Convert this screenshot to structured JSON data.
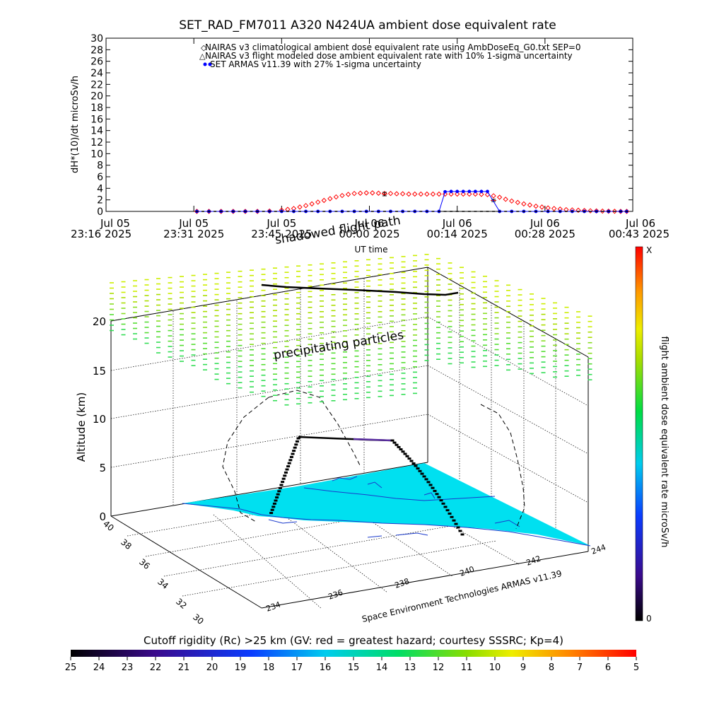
{
  "title": "SET_RAD_FM7011  A320 N424UA ambient dose equivalent rate",
  "chart_data": [
    {
      "type": "line",
      "ylabel": "dH*(10)/dt microSv/h",
      "xlabel": "UT time",
      "ylim": [
        0,
        30
      ],
      "yticks": [
        0,
        2,
        4,
        6,
        8,
        10,
        12,
        14,
        16,
        18,
        20,
        22,
        24,
        26,
        28,
        30
      ],
      "xticks": [
        {
          "top": "Jul 05",
          "bottom": "23:16 2025"
        },
        {
          "top": "Jul 05",
          "bottom": "23:31 2025"
        },
        {
          "top": "Jul 05",
          "bottom": "23:45 2025"
        },
        {
          "top": "Jul 06",
          "bottom": "00:00 2025"
        },
        {
          "top": "Jul 06",
          "bottom": "00:14 2025"
        },
        {
          "top": "Jul 06",
          "bottom": "00:28 2025"
        },
        {
          "top": "Jul 06",
          "bottom": "00:43 2025"
        }
      ],
      "legend_position": "top-right",
      "legend": [
        "NAIRAS v3 climatological ambient dose equivalent rate using AmbDoseEq_G0.txt SEP=0",
        "NAIRAS v3 flight modeled dose ambient equivalent rate with 10% 1-sigma uncertainty",
        "SET ARMAS v11.39 with 27% 1-sigma uncertainty"
      ],
      "legend_colors": [
        "#ff0000",
        "#000000",
        "#0000ff"
      ],
      "x_minutes": [
        0,
        14.5,
        29,
        43.5,
        58,
        72.5,
        87
      ],
      "series": [
        {
          "marker": "diamond",
          "color": "#ff0000",
          "x": [
            15,
            17,
            19,
            21,
            23,
            25,
            27,
            29,
            30,
            31,
            32,
            33,
            34,
            35,
            36,
            37,
            38,
            39,
            40,
            41,
            42,
            43,
            44,
            45,
            46,
            47,
            48,
            49,
            50,
            51,
            52,
            53,
            54,
            55,
            56,
            57,
            58,
            59,
            60,
            61,
            62,
            63,
            64,
            65,
            66,
            67,
            68,
            69,
            70,
            71,
            72,
            73,
            74,
            75,
            76,
            77,
            78,
            79,
            80,
            81,
            82,
            83,
            84,
            85,
            86
          ],
          "y": [
            0,
            0,
            0,
            0,
            0,
            0,
            0.05,
            0.2,
            0.35,
            0.5,
            0.75,
            1.0,
            1.3,
            1.6,
            1.9,
            2.2,
            2.5,
            2.75,
            2.95,
            3.1,
            3.15,
            3.2,
            3.2,
            3.15,
            3.1,
            3.1,
            3.05,
            3.05,
            3.0,
            3.0,
            3.0,
            3.0,
            3.0,
            3.0,
            3.0,
            3.0,
            3.0,
            3.0,
            3.0,
            3.0,
            2.95,
            2.9,
            2.7,
            2.45,
            2.1,
            1.8,
            1.55,
            1.3,
            1.1,
            0.9,
            0.75,
            0.6,
            0.5,
            0.4,
            0.3,
            0.25,
            0.2,
            0.15,
            0.1,
            0.08,
            0.05,
            0.03,
            0.02,
            0,
            0
          ]
        },
        {
          "marker": "errorbar",
          "color": "#000000",
          "x": [
            46,
            64
          ],
          "y": [
            3.0,
            1.9
          ],
          "err": [
            0.3,
            0.2
          ]
        },
        {
          "marker": "dot",
          "color": "#0000ff",
          "x": [
            15,
            17,
            19,
            21,
            23,
            25,
            27,
            29,
            31,
            33,
            35,
            37,
            39,
            41,
            43,
            45,
            47,
            49,
            51,
            53,
            55,
            56,
            57,
            58,
            59,
            60,
            61,
            62,
            63,
            65,
            67,
            69,
            71,
            73,
            75,
            77,
            79,
            81,
            83,
            85,
            86
          ],
          "y": [
            0,
            0,
            0,
            0,
            0,
            0,
            0,
            0,
            0,
            0,
            0,
            0,
            0,
            0,
            0,
            0,
            0,
            0,
            0,
            0,
            0,
            3.4,
            3.45,
            3.45,
            3.45,
            3.45,
            3.45,
            3.45,
            3.45,
            0,
            0,
            0,
            0,
            0,
            0,
            0,
            0,
            0,
            0,
            0,
            0
          ]
        }
      ]
    },
    {
      "type": "scatter",
      "zlabel": "Altitude (km)",
      "zticks": [
        0,
        5,
        10,
        15,
        20
      ],
      "lat_ticks": [
        40,
        38,
        36,
        34,
        32,
        30
      ],
      "lon_ticks": [
        234,
        236,
        238,
        240,
        242,
        244
      ],
      "annotations": [
        "shadowed flight path",
        "precipitating particles"
      ],
      "credit": "Space Environment Technologies ARMAS v11.39",
      "colorbar": {
        "label": "flight ambient dose equivalent rate microSv/h",
        "top": "X",
        "bottom": "0"
      }
    }
  ],
  "footer": {
    "label": "Cutoff rigidity (Rc) >25 km (GV: red = greatest hazard; courtesy SSSRC; Kp=4)",
    "ticks": [
      "25",
      "24",
      "23",
      "22",
      "21",
      "20",
      "19",
      "18",
      "17",
      "16",
      "15",
      "14",
      "13",
      "12",
      "11",
      "10",
      "9",
      "8",
      "7",
      "6",
      "5"
    ]
  }
}
